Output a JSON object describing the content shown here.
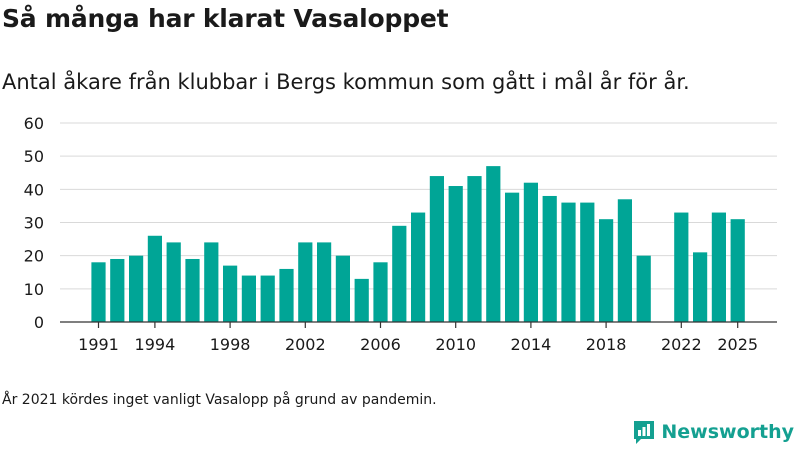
{
  "title": "Så många har klarat Vasaloppet",
  "subtitle": "Antal åkare från klubbar i Bergs kommun som gått i mål år för år.",
  "footnote": "År 2021 kördes inget vanligt Vasalopp på grund av pandemin.",
  "brand": {
    "name": "Newsworthy",
    "icon": "newsworthy-logo-icon"
  },
  "colors": {
    "bar": "#00a596",
    "grid": "#d9d9d9",
    "axis": "#333333",
    "brand": "#14a091"
  },
  "chart_data": {
    "type": "bar",
    "title": "Så många har klarat Vasaloppet",
    "xlabel": "",
    "ylabel": "",
    "ylim": [
      0,
      60
    ],
    "yticks": [
      0,
      10,
      20,
      30,
      40,
      50,
      60
    ],
    "xticks": [
      1991,
      1994,
      1998,
      2002,
      2006,
      2010,
      2014,
      2018,
      2022,
      2025
    ],
    "grid": true,
    "categories": [
      1991,
      1992,
      1993,
      1994,
      1995,
      1996,
      1997,
      1998,
      1999,
      2000,
      2001,
      2002,
      2003,
      2004,
      2005,
      2006,
      2007,
      2008,
      2009,
      2010,
      2011,
      2012,
      2013,
      2014,
      2015,
      2016,
      2017,
      2018,
      2019,
      2020,
      2021,
      2022,
      2023,
      2024,
      2025
    ],
    "values": [
      18,
      19,
      20,
      26,
      24,
      19,
      24,
      17,
      14,
      14,
      16,
      24,
      24,
      20,
      13,
      18,
      29,
      33,
      44,
      41,
      44,
      47,
      39,
      42,
      38,
      36,
      36,
      31,
      37,
      20,
      null,
      33,
      21,
      33,
      31
    ]
  }
}
